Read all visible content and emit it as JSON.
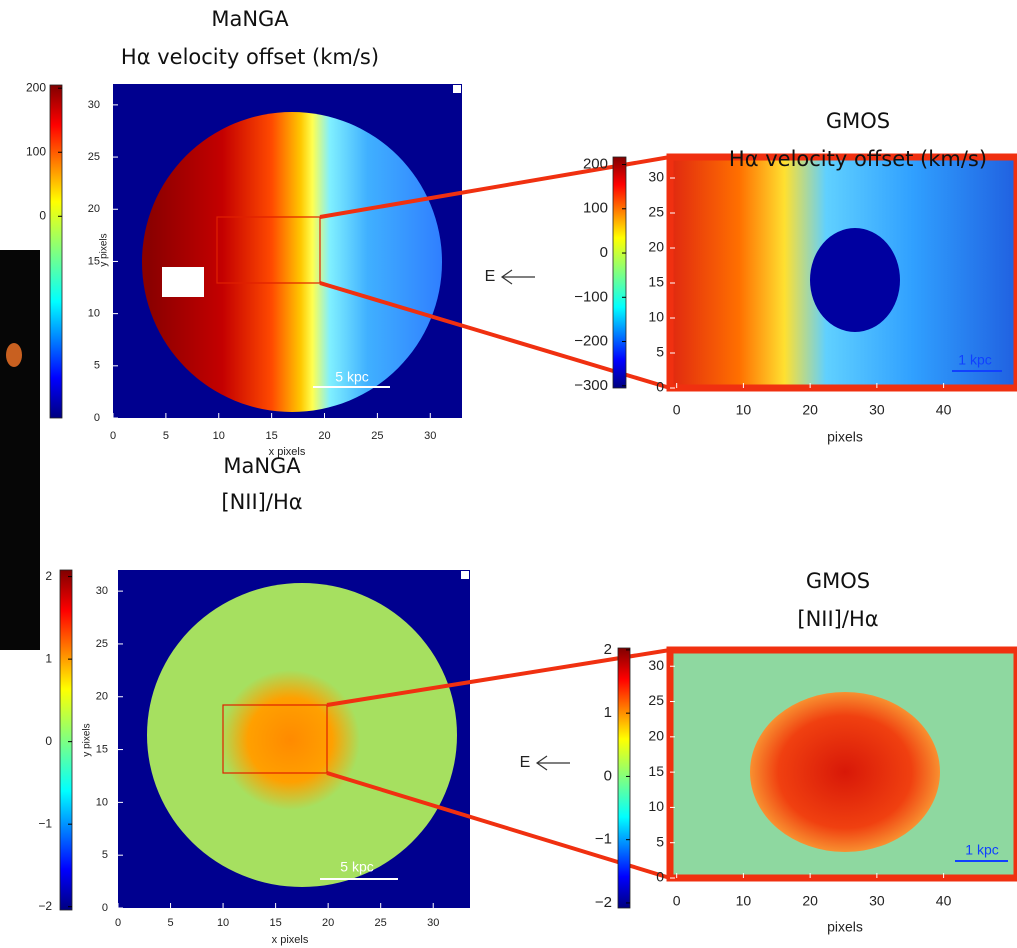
{
  "panels": [
    {
      "title": [
        "MaNGA",
        "Hα velocity offset (km/s)"
      ],
      "colorbar": {
        "lim": [
          -315,
          205
        ],
        "ticks": [
          200,
          100,
          0
        ]
      },
      "xlim": [
        0,
        33
      ],
      "ylim": [
        0,
        32
      ],
      "xticks": [
        0,
        5,
        10,
        15,
        20,
        25,
        30
      ],
      "yticks": [
        0,
        5,
        10,
        15,
        20,
        25,
        30
      ],
      "xlabel": "x pixels",
      "ylabel": "y pixels",
      "scalebar": "5 kpc"
    },
    {
      "title": [
        "GMOS",
        "Hα velocity offset (km/s)"
      ],
      "colorbar": {
        "lim": [
          -305,
          217
        ],
        "ticks": [
          200,
          100,
          0,
          {
            "value": -100,
            "label": "−100"
          },
          {
            "value": -200,
            "label": "−200"
          },
          {
            "value": -300,
            "label": "−300"
          }
        ]
      },
      "xlim": [
        -1,
        51
      ],
      "ylim": [
        0,
        33
      ],
      "xticks": [
        0,
        10,
        20,
        30,
        40
      ],
      "yticks": [
        0,
        5,
        10,
        15,
        20,
        25,
        30
      ],
      "xlabel": "pixels",
      "scalebar": "1 kpc",
      "arrow_label": "E"
    },
    {
      "title": [
        "MaNGA",
        "[NII]/Hα"
      ],
      "colorbar": {
        "lim": [
          -2.04,
          2.08
        ],
        "ticks": [
          2,
          1,
          0,
          {
            "value": -1,
            "label": "−1"
          },
          {
            "value": -2,
            "label": "−2"
          }
        ]
      },
      "xlim": [
        0,
        33.5
      ],
      "ylim": [
        0,
        32
      ],
      "xticks": [
        0,
        5,
        10,
        15,
        20,
        25,
        30
      ],
      "yticks": [
        0,
        5,
        10,
        15,
        20,
        25,
        30
      ],
      "xlabel": "x pixels",
      "ylabel": "y pixels",
      "scalebar": "5 kpc"
    },
    {
      "title": [
        "GMOS",
        "[NII]/Hα"
      ],
      "colorbar": {
        "lim": [
          -2.08,
          2.03
        ],
        "ticks": [
          2,
          1,
          0,
          {
            "value": -1,
            "label": "−1"
          },
          {
            "value": -2,
            "label": "−2"
          }
        ]
      },
      "xlim": [
        -1,
        51
      ],
      "ylim": [
        0,
        32.3
      ],
      "xticks": [
        0,
        10,
        20,
        30,
        40
      ],
      "yticks": [
        0,
        5,
        10,
        15,
        20,
        25,
        30
      ],
      "xlabel": "pixels",
      "scalebar": "1 kpc",
      "arrow_label": "E"
    }
  ]
}
